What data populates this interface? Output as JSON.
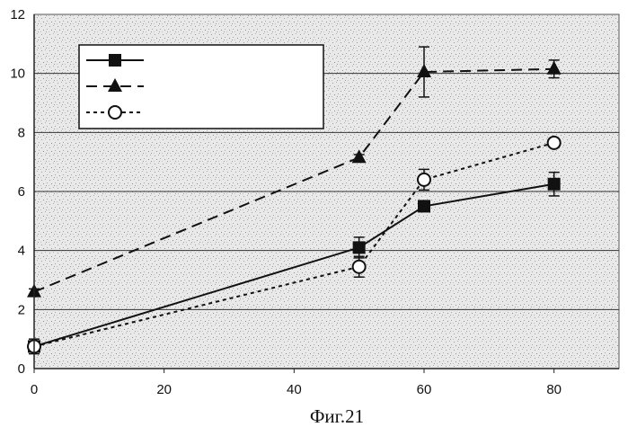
{
  "chart_data": {
    "type": "line",
    "caption": "Фиг.21",
    "xlim": [
      0,
      90
    ],
    "ylim": [
      0,
      12
    ],
    "x_ticks": [
      0,
      20,
      40,
      60,
      80
    ],
    "y_ticks": [
      0,
      2,
      4,
      6,
      8,
      10,
      12
    ],
    "grid": "horizontal",
    "legend_placement": "top-left",
    "series": [
      {
        "marker": "square",
        "line": "solid",
        "x": [
          0,
          50,
          60,
          80
        ],
        "y": [
          0.75,
          4.1,
          5.5,
          6.25
        ],
        "err": [
          0.25,
          0.35,
          0.1,
          0.4
        ]
      },
      {
        "marker": "triangle",
        "line": "dashed",
        "x": [
          0,
          50,
          60,
          80
        ],
        "y": [
          2.6,
          7.15,
          10.05,
          10.15
        ],
        "err": [
          0.1,
          0.1,
          0.85,
          0.3
        ]
      },
      {
        "marker": "circle",
        "line": "dotted",
        "x": [
          0,
          50,
          60,
          80
        ],
        "y": [
          0.75,
          3.45,
          6.4,
          7.65
        ],
        "err": [
          0.15,
          0.35,
          0.35,
          0.1
        ]
      }
    ]
  }
}
